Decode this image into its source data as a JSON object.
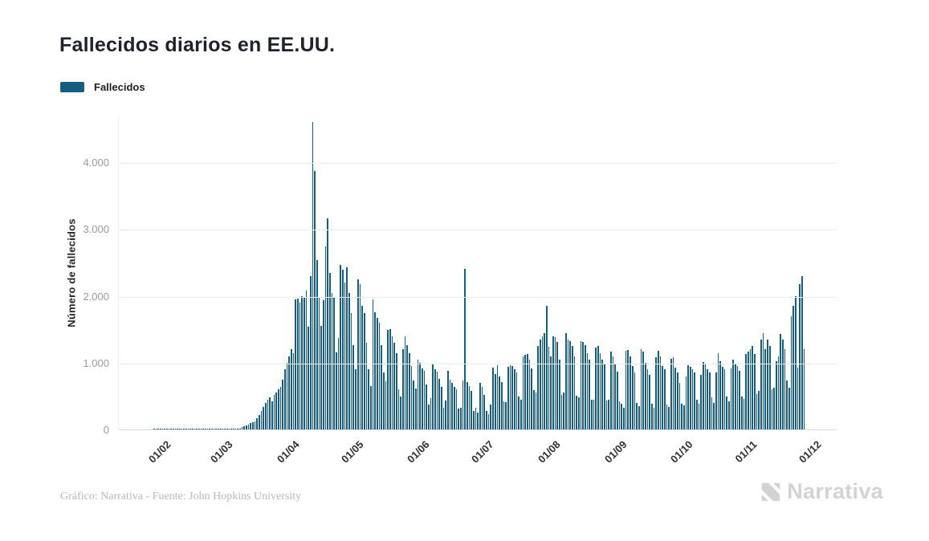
{
  "header": {
    "title": "Fallecidos diarios en EE.UU."
  },
  "legend": {
    "items": [
      {
        "label": "Fallecidos",
        "color": "#165e80"
      }
    ]
  },
  "chart_data": {
    "type": "bar",
    "title": "Fallecidos diarios en EE.UU.",
    "xlabel": "",
    "ylabel": "Número de fallecidos",
    "ylim": [
      0,
      4700
    ],
    "grid": "horizontal",
    "legend_position": "top-left",
    "bar_color": "#165e80",
    "y_axis": {
      "ticks": [
        {
          "value": 0,
          "label": "0"
        },
        {
          "value": 1000,
          "label": "1.000"
        },
        {
          "value": 2000,
          "label": "2.000"
        },
        {
          "value": 3000,
          "label": "3.000"
        },
        {
          "value": 4000,
          "label": "4.000"
        }
      ]
    },
    "x_axis": {
      "format": "DD/MM",
      "total_days": 304,
      "ticks": [
        {
          "label": "01/02",
          "day_index": 0
        },
        {
          "label": "01/03",
          "day_index": 29
        },
        {
          "label": "01/04",
          "day_index": 60
        },
        {
          "label": "01/05",
          "day_index": 90
        },
        {
          "label": "01/06",
          "day_index": 121
        },
        {
          "label": "01/07",
          "day_index": 151
        },
        {
          "label": "01/08",
          "day_index": 182
        },
        {
          "label": "01/09",
          "day_index": 213
        },
        {
          "label": "01/10",
          "day_index": 244
        },
        {
          "label": "01/11",
          "day_index": 274
        },
        {
          "label": "01/12",
          "day_index": 304
        }
      ]
    },
    "series": [
      {
        "name": "Fallecidos",
        "start_label": "01/02",
        "end_label": "30/11",
        "daily_values": [
          1,
          1,
          1,
          1,
          1,
          1,
          1,
          1,
          1,
          1,
          1,
          1,
          1,
          1,
          1,
          1,
          1,
          1,
          1,
          1,
          1,
          1,
          1,
          1,
          1,
          1,
          1,
          1,
          1,
          1,
          1,
          4,
          3,
          2,
          3,
          4,
          6,
          7,
          11,
          14,
          18,
          41,
          49,
          58,
          73,
          95,
          110,
          121,
          173,
          219,
          272,
          340,
          400,
          440,
          480,
          420,
          520,
          560,
          600,
          640,
          750,
          900,
          1000,
          1100,
          1200,
          1150,
          1950,
          1970,
          1900,
          2000,
          1980,
          2090,
          1540,
          2300,
          4620,
          3880,
          2540,
          1980,
          1560,
          1940,
          2750,
          3170,
          2350,
          2050,
          1990,
          1160,
          1370,
          2470,
          2400,
          2200,
          2430,
          2050,
          1750,
          1270,
          900,
          2250,
          2180,
          1850,
          1750,
          1300,
          900,
          650,
          1950,
          1760,
          1670,
          1600,
          1270,
          860,
          720,
          1500,
          1510,
          1400,
          1300,
          1150,
          600,
          500,
          1200,
          1400,
          1270,
          1150,
          950,
          730,
          610,
          1050,
          1000,
          920,
          880,
          670,
          370,
          470,
          990,
          900,
          870,
          760,
          640,
          330,
          430,
          880,
          750,
          700,
          640,
          600,
          310,
          330,
          730,
          2410,
          710,
          650,
          580,
          280,
          330,
          250,
          700,
          640,
          520,
          280,
          230,
          370,
          930,
          830,
          960,
          800,
          710,
          420,
          410,
          940,
          970,
          950,
          900,
          850,
          490,
          450,
          1100,
          1120,
          1130,
          1050,
          920,
          590,
          560,
          1250,
          1350,
          1400,
          1450,
          1850,
          1240,
          1100,
          1400,
          1380,
          1310,
          1050,
          520,
          560,
          1450,
          1350,
          1330,
          1250,
          1100,
          510,
          480,
          1330,
          1310,
          1270,
          1150,
          1050,
          450,
          440,
          1230,
          1250,
          1150,
          1050,
          980,
          430,
          450,
          1170,
          1100,
          980,
          870,
          420,
          390,
          330,
          1180,
          1190,
          1100,
          950,
          850,
          400,
          350,
          1200,
          1170,
          1000,
          900,
          820,
          380,
          330,
          1080,
          1180,
          1100,
          950,
          900,
          370,
          340,
          1060,
          1080,
          930,
          850,
          700,
          390,
          360,
          790,
          970,
          940,
          900,
          850,
          450,
          380,
          820,
          1010,
          980,
          900,
          860,
          480,
          400,
          850,
          1150,
          1030,
          940,
          900,
          490,
          420,
          920,
          1050,
          990,
          950,
          880,
          500,
          460,
          1130,
          1170,
          1200,
          1250,
          1130,
          530,
          580,
          1350,
          1450,
          1200,
          1350,
          1250,
          600,
          630,
          1020,
          1100,
          1430,
          1350,
          1210,
          730,
          630,
          1700,
          1860,
          2000,
          930,
          2180,
          2300,
          1210
        ]
      }
    ]
  },
  "footer": {
    "credit": "Gráfico: Narrativa - Fuente: John Hopkins University",
    "brand_name": "Narrativa"
  }
}
